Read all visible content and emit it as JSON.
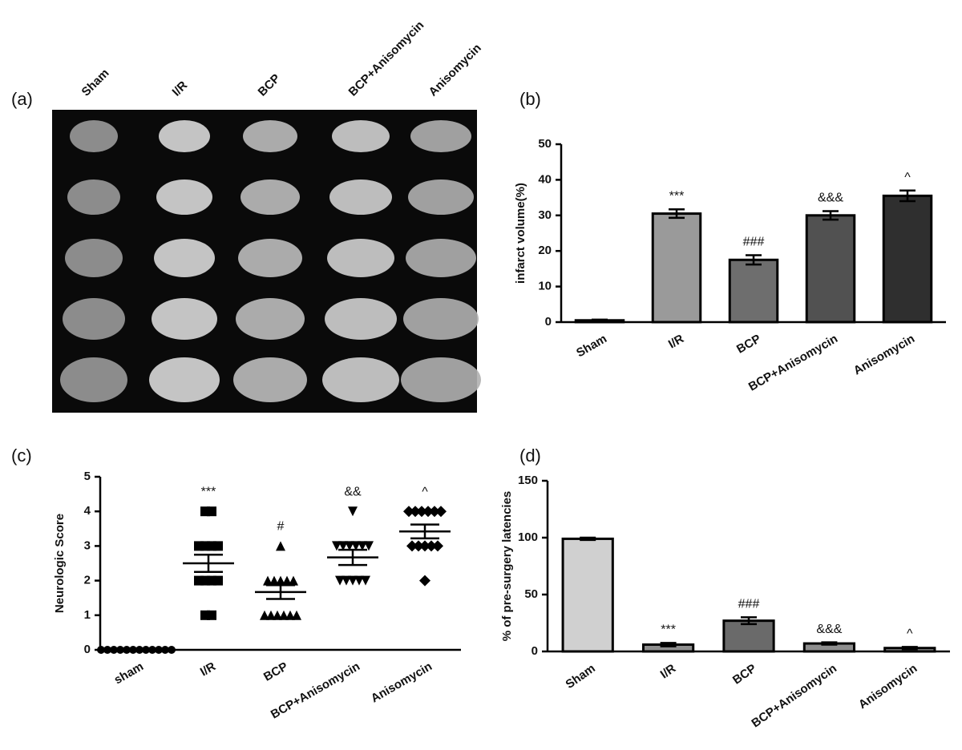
{
  "figure_a": {
    "panel_label": "(a)",
    "columns": [
      "Sham",
      "I/R",
      "BCP",
      "BCP+Anisomycin",
      "Anisomycin"
    ]
  },
  "chart_data": [
    {
      "type": "bar",
      "panel_label": "(b)",
      "y_label": "infarct volume(%)",
      "categories": [
        "Sham",
        "I/R",
        "BCP",
        "BCP+Anisomycin",
        "Anisomycin"
      ],
      "values": [
        0.5,
        30.5,
        17.5,
        30,
        35.5
      ],
      "errors": [
        0.2,
        1.2,
        1.3,
        1.2,
        1.5
      ],
      "annotations": [
        null,
        "***",
        "###",
        "&&&",
        "^"
      ],
      "colors": [
        "#d4d4d4",
        "#9a9a9a",
        "#6e6e6e",
        "#515151",
        "#2f2f2f"
      ],
      "ylim": [
        0,
        50
      ],
      "yticks": [
        0,
        10,
        20,
        30,
        40,
        50
      ]
    },
    {
      "type": "dot",
      "panel_label": "(c)",
      "y_label": "Neurologic Score",
      "categories": [
        "sham",
        "I/R",
        "BCP",
        "BCP+Anisomycin",
        "Anisomycin"
      ],
      "markers": [
        "circle",
        "square",
        "triangle",
        "triangle-down",
        "diamond"
      ],
      "points": [
        [
          0,
          0,
          0,
          0,
          0,
          0,
          0,
          0,
          0,
          0,
          0,
          0
        ],
        [
          4,
          4,
          3,
          3,
          3,
          3,
          2,
          2,
          2,
          2,
          1,
          1
        ],
        [
          3,
          2,
          2,
          2,
          2,
          2,
          1,
          1,
          1,
          1,
          1,
          1
        ],
        [
          4,
          3,
          3,
          3,
          3,
          3,
          3,
          2,
          2,
          2,
          2,
          2
        ],
        [
          4,
          4,
          4,
          4,
          4,
          4,
          3,
          3,
          3,
          3,
          3,
          2
        ]
      ],
      "means": [
        0,
        2.5,
        1.67,
        2.67,
        3.42
      ],
      "errors": [
        0,
        0.25,
        0.2,
        0.22,
        0.2
      ],
      "annotations": [
        null,
        "***",
        "#",
        "&&",
        "^"
      ],
      "ylim": [
        0,
        5
      ],
      "yticks": [
        0,
        1,
        2,
        3,
        4,
        5
      ]
    },
    {
      "type": "bar",
      "panel_label": "(d)",
      "y_label": "% of pre-surgery latencies",
      "categories": [
        "Sham",
        "I/R",
        "BCP",
        "BCP+Anisomycin",
        "Anisomycin"
      ],
      "values": [
        99,
        6,
        27,
        7,
        3
      ],
      "errors": [
        1,
        1.5,
        3,
        1,
        1
      ],
      "annotations": [
        null,
        "***",
        "###",
        "&&&",
        "^"
      ],
      "colors": [
        "#d0d0d0",
        "#8e8e8e",
        "#6a6a6a",
        "#8e8e8e",
        "#8e8e8e"
      ],
      "ylim": [
        0,
        150
      ],
      "yticks": [
        0,
        50,
        100,
        150
      ]
    }
  ]
}
